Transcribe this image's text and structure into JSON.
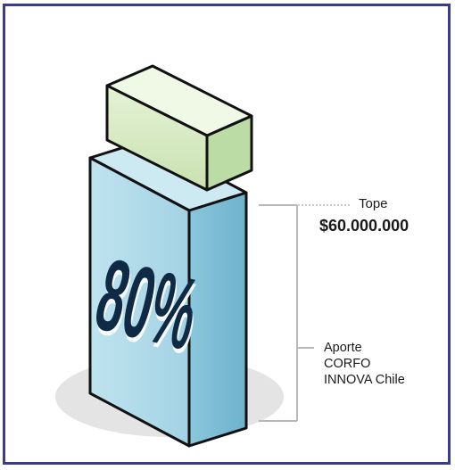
{
  "chart_data": {
    "type": "bar",
    "stacked": true,
    "segments": [
      {
        "name": "Aporte CORFO INNOVA Chile",
        "percent_label": "80%",
        "color": "#a9d6e6"
      },
      {
        "name": "",
        "color": "#d9ebc6"
      }
    ]
  },
  "labels": {
    "percent": "80%",
    "tope_label": "Tope",
    "tope_value": "$60.000.000",
    "aporte_lines": [
      "Aporte",
      "CORFO",
      "INNOVA Chile"
    ]
  },
  "colors": {
    "frame": "#3a3b8c",
    "blue_front": "#a9d6e6",
    "blue_side": "#7fbcd4",
    "green_front": "#d9ebc6",
    "green_side": "#b4d49a",
    "green_top": "#eef7e4",
    "text_dark": "#0f2a45",
    "bracket": "#b8b8b8"
  }
}
